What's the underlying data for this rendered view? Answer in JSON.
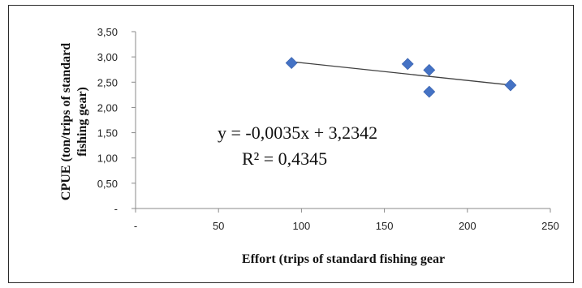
{
  "chart_data": {
    "type": "scatter",
    "xlabel": "Effort (trips of standard fishing gear",
    "ylabel": "CPUE (ton/trips of standard fishing gear)",
    "x_ticks": [
      "-",
      "50",
      "100",
      "150",
      "200",
      "250"
    ],
    "y_ticks": [
      "-",
      "0,50",
      "1,00",
      "1,50",
      "2,00",
      "2,50",
      "3,00",
      "3,50"
    ],
    "xlim": [
      0,
      250
    ],
    "ylim": [
      0,
      3.5
    ],
    "grid": false,
    "legend": "none",
    "points": [
      {
        "x": 94,
        "y": 2.88
      },
      {
        "x": 164,
        "y": 2.86
      },
      {
        "x": 177,
        "y": 2.74
      },
      {
        "x": 177,
        "y": 2.31
      },
      {
        "x": 226,
        "y": 2.44
      }
    ],
    "trendline": {
      "slope": -0.0035,
      "intercept": 3.2342,
      "x_range": [
        94,
        226
      ]
    },
    "annotations": {
      "equation": "y = -0,0035x + 3,2342",
      "r_squared": "R² = 0,4345"
    },
    "marker_color": "#4472C4",
    "trendline_color": "#404040"
  }
}
